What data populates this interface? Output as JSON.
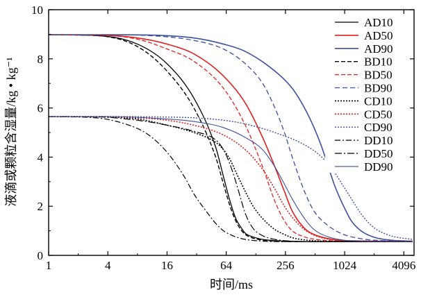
{
  "chart_data": {
    "type": "line",
    "xlabel": "时间/ms",
    "ylabel": "液滴或颗粒含湿量/kg • kg⁻¹",
    "xscale": "log2",
    "xlim": [
      1,
      5200
    ],
    "ylim": [
      0,
      10
    ],
    "xticks": [
      1,
      4,
      16,
      64,
      256,
      1024,
      4096
    ],
    "xtick_labels": [
      "1",
      "4",
      "16",
      "64",
      "256",
      "1024",
      "4096"
    ],
    "yticks": [
      0,
      2,
      4,
      6,
      8,
      10
    ],
    "ytick_labels": [
      "0",
      "2",
      "4",
      "6",
      "8",
      "10"
    ],
    "grid": false,
    "legend_position": "right",
    "series": [
      {
        "name": "AD10",
        "color": "#000000",
        "dash": "solid",
        "width": 1.3,
        "x": [
          1,
          3,
          8,
          16,
          30,
          50,
          60,
          70,
          80,
          90,
          100,
          120,
          150,
          200,
          300,
          500,
          1000,
          5000
        ],
        "y": [
          8.98,
          8.95,
          8.6,
          7.8,
          6.4,
          4.4,
          3.2,
          2.2,
          1.5,
          1.15,
          0.9,
          0.75,
          0.65,
          0.6,
          0.57,
          0.56,
          0.56,
          0.56
        ]
      },
      {
        "name": "AD50",
        "color": "#e02020",
        "dash": "solid",
        "width": 1.6,
        "x": [
          1,
          3,
          8,
          16,
          30,
          60,
          100,
          150,
          200,
          250,
          300,
          400,
          500,
          700,
          1000,
          5000
        ],
        "y": [
          8.98,
          8.97,
          8.85,
          8.6,
          8.2,
          7.3,
          6.2,
          4.8,
          3.6,
          2.6,
          1.8,
          1.1,
          0.85,
          0.68,
          0.6,
          0.57
        ]
      },
      {
        "name": "AD90",
        "color": "#3a4f9e",
        "dash": "solid",
        "width": 1.6,
        "x": [
          1,
          4,
          10,
          30,
          60,
          100,
          200,
          300,
          400,
          500,
          600,
          700,
          800,
          900,
          1000,
          1200,
          1500,
          2000,
          3000,
          5000
        ],
        "y": [
          8.98,
          8.98,
          8.97,
          8.85,
          8.6,
          8.3,
          7.5,
          6.8,
          6.0,
          5.2,
          4.4,
          3.6,
          2.9,
          2.4,
          2.0,
          1.4,
          1.0,
          0.75,
          0.62,
          0.58
        ]
      },
      {
        "name": "BD10",
        "color": "#000000",
        "dash": "6,3",
        "width": 1.4,
        "x": [
          1,
          3,
          8,
          16,
          30,
          50,
          60,
          70,
          80,
          90,
          100,
          120,
          150,
          200,
          300,
          500,
          1000,
          5000
        ],
        "y": [
          8.98,
          8.95,
          8.5,
          7.5,
          6.0,
          4.0,
          2.9,
          2.0,
          1.4,
          1.05,
          0.85,
          0.7,
          0.62,
          0.58,
          0.56,
          0.56,
          0.56,
          0.56
        ]
      },
      {
        "name": "BD50",
        "color": "#e02020",
        "dash": "6,3",
        "width": 1.3,
        "x": [
          1,
          3,
          8,
          16,
          30,
          60,
          100,
          150,
          200,
          250,
          300,
          400,
          500,
          700,
          1000,
          5000
        ],
        "y": [
          8.98,
          8.97,
          8.8,
          8.4,
          7.9,
          6.8,
          5.3,
          3.6,
          2.2,
          1.4,
          1.0,
          0.75,
          0.66,
          0.6,
          0.58,
          0.57
        ]
      },
      {
        "name": "BD90",
        "color": "#3a4f9e",
        "dash": "7,4",
        "width": 1.3,
        "x": [
          1,
          4,
          10,
          30,
          60,
          100,
          150,
          200,
          250,
          300,
          400,
          500,
          700,
          1000,
          1500,
          2000,
          5000
        ],
        "y": [
          8.98,
          8.98,
          8.95,
          8.75,
          8.4,
          7.8,
          7.0,
          6.0,
          5.0,
          4.0,
          2.6,
          1.8,
          1.2,
          0.85,
          0.68,
          0.62,
          0.58
        ]
      },
      {
        "name": "CD10",
        "color": "#000000",
        "dash": "2,2",
        "width": 1.6,
        "x": [
          1,
          3,
          8,
          16,
          30,
          50,
          60,
          70,
          80,
          100,
          120,
          150,
          200,
          250,
          300,
          400,
          600,
          1000,
          5000
        ],
        "y": [
          5.65,
          5.64,
          5.55,
          5.3,
          5.0,
          4.6,
          4.3,
          3.9,
          3.4,
          2.6,
          2.0,
          1.5,
          1.05,
          0.85,
          0.72,
          0.63,
          0.58,
          0.57,
          0.57
        ]
      },
      {
        "name": "CD50",
        "color": "#e02020",
        "dash": "2,2",
        "width": 1.6,
        "x": [
          1,
          3,
          8,
          16,
          30,
          60,
          100,
          150,
          200,
          250,
          300,
          400,
          500,
          700,
          1000,
          5000
        ],
        "y": [
          5.65,
          5.65,
          5.6,
          5.5,
          5.3,
          4.9,
          4.3,
          3.5,
          2.7,
          2.0,
          1.55,
          1.05,
          0.82,
          0.66,
          0.6,
          0.58
        ]
      },
      {
        "name": "CD90",
        "color": "#3a4f9e",
        "dash": "2,2",
        "width": 1.4,
        "x": [
          1,
          4,
          10,
          30,
          60,
          100,
          200,
          400,
          600,
          800,
          1000,
          1200,
          1500,
          2000,
          3000,
          5000
        ],
        "y": [
          5.65,
          5.65,
          5.64,
          5.6,
          5.5,
          5.35,
          5.0,
          4.5,
          4.0,
          3.4,
          2.8,
          2.3,
          1.7,
          1.15,
          0.8,
          0.65
        ]
      },
      {
        "name": "DD10",
        "color": "#000000",
        "dash": "8,3,2,3",
        "width": 1.2,
        "x": [
          1,
          3,
          6,
          10,
          16,
          24,
          30,
          40,
          50,
          60,
          70,
          80,
          100,
          150,
          200,
          400,
          1000,
          5000
        ],
        "y": [
          5.65,
          5.6,
          5.35,
          4.95,
          4.2,
          3.2,
          2.5,
          1.8,
          1.3,
          1.0,
          0.85,
          0.75,
          0.65,
          0.58,
          0.56,
          0.56,
          0.56,
          0.56
        ]
      },
      {
        "name": "DD50",
        "color": "#000000",
        "dash": "10,3,2,3",
        "width": 1.2,
        "x": [
          1,
          3,
          8,
          16,
          30,
          50,
          60,
          70,
          80,
          90,
          100,
          120,
          150,
          200,
          300,
          500,
          1000,
          5000
        ],
        "y": [
          5.65,
          5.64,
          5.5,
          5.3,
          5.05,
          4.7,
          4.3,
          3.7,
          3.0,
          2.3,
          1.7,
          1.1,
          0.8,
          0.65,
          0.58,
          0.56,
          0.56,
          0.56
        ]
      },
      {
        "name": "DD90",
        "color": "#3a4f9e",
        "dash": "solid",
        "width": 1.1,
        "x": [
          1,
          4,
          10,
          30,
          60,
          100,
          150,
          200,
          250,
          300,
          400,
          500,
          700,
          1000,
          1500,
          2000,
          5000
        ],
        "y": [
          5.65,
          5.65,
          5.6,
          5.45,
          5.2,
          4.8,
          4.3,
          3.6,
          2.9,
          2.3,
          1.5,
          1.05,
          0.75,
          0.62,
          0.58,
          0.57,
          0.57
        ]
      }
    ]
  }
}
